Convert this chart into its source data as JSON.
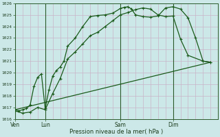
{
  "bg_color": "#cce8e8",
  "grid_color_h": "#c8b4c8",
  "grid_color_v": "#c8b4c8",
  "line_color": "#1a5a1a",
  "ylim": [
    1016,
    1026
  ],
  "yticks": [
    1016,
    1017,
    1018,
    1019,
    1020,
    1021,
    1022,
    1023,
    1024,
    1025,
    1026
  ],
  "xlabel": "Pression niveau de la mer( hPa )",
  "xtick_labels": [
    "Ven",
    "Lun",
    "Sam",
    "Dim"
  ],
  "xtick_positions": [
    0,
    8,
    28,
    42
  ],
  "vline_positions": [
    0,
    8,
    28,
    42
  ],
  "xlim": [
    0,
    54
  ],
  "line1_x": [
    0,
    1,
    2,
    3,
    4,
    5,
    6,
    7,
    8,
    9,
    10,
    11,
    12,
    13,
    14,
    16,
    18,
    20,
    22,
    24,
    26,
    28,
    29,
    30,
    31,
    32,
    34,
    36,
    38,
    40,
    42,
    44,
    46,
    48,
    50,
    52
  ],
  "line1_y": [
    1016.8,
    1016.7,
    1016.8,
    1016.9,
    1017.2,
    1018.8,
    1019.6,
    1019.9,
    1016.9,
    1018.5,
    1019.7,
    1020.2,
    1020.5,
    1021.0,
    1022.3,
    1023.0,
    1024.0,
    1024.85,
    1024.95,
    1025.0,
    1025.15,
    1025.55,
    1025.65,
    1025.7,
    1025.5,
    1025.0,
    1024.85,
    1024.8,
    1024.9,
    1025.6,
    1025.7,
    1025.5,
    1024.75,
    1023.0,
    1021.0,
    1020.9
  ],
  "line2_x": [
    0,
    2,
    4,
    6,
    8,
    10,
    12,
    14,
    16,
    18,
    20,
    22,
    24,
    26,
    28,
    30,
    32,
    34,
    36,
    38,
    40,
    42,
    44,
    46,
    50,
    52
  ],
  "line2_y": [
    1016.7,
    1016.5,
    1016.6,
    1017.0,
    1016.8,
    1018.2,
    1019.5,
    1021.2,
    1021.8,
    1022.5,
    1023.2,
    1023.5,
    1024.0,
    1024.5,
    1025.0,
    1025.2,
    1025.45,
    1025.6,
    1025.5,
    1025.0,
    1024.85,
    1024.9,
    1022.9,
    1021.5,
    1021.0,
    1020.9
  ],
  "line3_x": [
    0,
    52
  ],
  "line3_y": [
    1016.8,
    1020.9
  ]
}
